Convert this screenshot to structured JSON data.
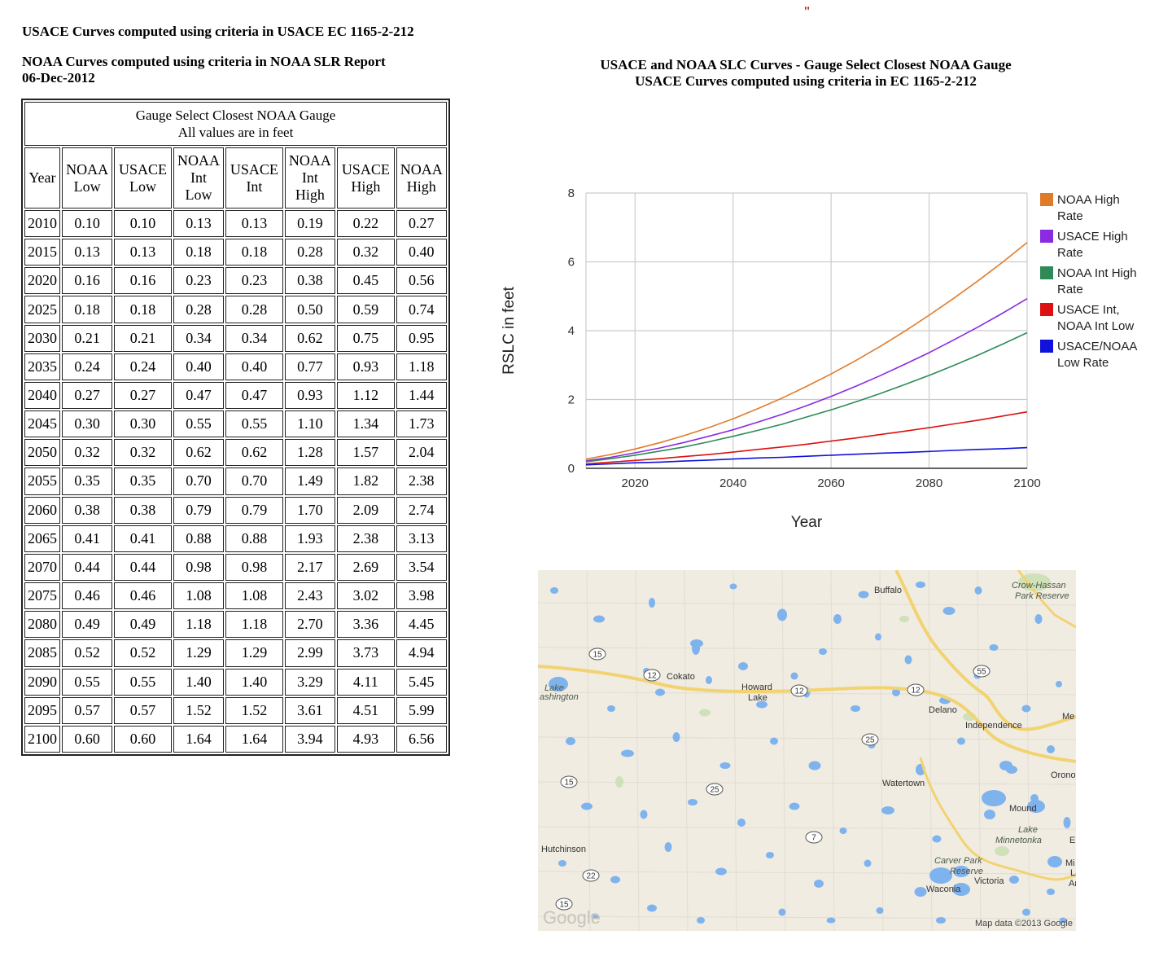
{
  "header": {
    "line1": "USACE Curves computed using criteria in USACE EC 1165-2-212",
    "line2a": "NOAA Curves computed using criteria in NOAA SLR Report",
    "line2b": "06-Dec-2012",
    "mark": "\""
  },
  "table": {
    "caption1": "Gauge Select Closest NOAA Gauge",
    "caption2": "All values are in feet",
    "columns": [
      "Year",
      "NOAA Low",
      "USACE Low",
      "NOAA Int Low",
      "USACE Int",
      "NOAA Int High",
      "USACE High",
      "NOAA High"
    ],
    "rows": [
      [
        "2010",
        "0.10",
        "0.10",
        "0.13",
        "0.13",
        "0.19",
        "0.22",
        "0.27"
      ],
      [
        "2015",
        "0.13",
        "0.13",
        "0.18",
        "0.18",
        "0.28",
        "0.32",
        "0.40"
      ],
      [
        "2020",
        "0.16",
        "0.16",
        "0.23",
        "0.23",
        "0.38",
        "0.45",
        "0.56"
      ],
      [
        "2025",
        "0.18",
        "0.18",
        "0.28",
        "0.28",
        "0.50",
        "0.59",
        "0.74"
      ],
      [
        "2030",
        "0.21",
        "0.21",
        "0.34",
        "0.34",
        "0.62",
        "0.75",
        "0.95"
      ],
      [
        "2035",
        "0.24",
        "0.24",
        "0.40",
        "0.40",
        "0.77",
        "0.93",
        "1.18"
      ],
      [
        "2040",
        "0.27",
        "0.27",
        "0.47",
        "0.47",
        "0.93",
        "1.12",
        "1.44"
      ],
      [
        "2045",
        "0.30",
        "0.30",
        "0.55",
        "0.55",
        "1.10",
        "1.34",
        "1.73"
      ],
      [
        "2050",
        "0.32",
        "0.32",
        "0.62",
        "0.62",
        "1.28",
        "1.57",
        "2.04"
      ],
      [
        "2055",
        "0.35",
        "0.35",
        "0.70",
        "0.70",
        "1.49",
        "1.82",
        "2.38"
      ],
      [
        "2060",
        "0.38",
        "0.38",
        "0.79",
        "0.79",
        "1.70",
        "2.09",
        "2.74"
      ],
      [
        "2065",
        "0.41",
        "0.41",
        "0.88",
        "0.88",
        "1.93",
        "2.38",
        "3.13"
      ],
      [
        "2070",
        "0.44",
        "0.44",
        "0.98",
        "0.98",
        "2.17",
        "2.69",
        "3.54"
      ],
      [
        "2075",
        "0.46",
        "0.46",
        "1.08",
        "1.08",
        "2.43",
        "3.02",
        "3.98"
      ],
      [
        "2080",
        "0.49",
        "0.49",
        "1.18",
        "1.18",
        "2.70",
        "3.36",
        "4.45"
      ],
      [
        "2085",
        "0.52",
        "0.52",
        "1.29",
        "1.29",
        "2.99",
        "3.73",
        "4.94"
      ],
      [
        "2090",
        "0.55",
        "0.55",
        "1.40",
        "1.40",
        "3.29",
        "4.11",
        "5.45"
      ],
      [
        "2095",
        "0.57",
        "0.57",
        "1.52",
        "1.52",
        "3.61",
        "4.51",
        "5.99"
      ],
      [
        "2100",
        "0.60",
        "0.60",
        "1.64",
        "1.64",
        "3.94",
        "4.93",
        "6.56"
      ]
    ]
  },
  "chart_data": {
    "type": "line",
    "title": "USACE and NOAA SLC Curves - Gauge Select Closest NOAA Gauge",
    "subtitle": "USACE Curves computed using criteria in EC 1165-2-212",
    "xlabel": "Year",
    "ylabel": "RSLC in feet",
    "xlim": [
      2010,
      2100
    ],
    "ylim": [
      0,
      8
    ],
    "xticks": [
      2020,
      2040,
      2060,
      2080,
      2100
    ],
    "yticks": [
      0,
      2,
      4,
      6,
      8
    ],
    "grid": true,
    "legend_position": "right",
    "x": [
      2010,
      2015,
      2020,
      2025,
      2030,
      2035,
      2040,
      2045,
      2050,
      2055,
      2060,
      2065,
      2070,
      2075,
      2080,
      2085,
      2090,
      2095,
      2100
    ],
    "series": [
      {
        "name": "NOAA High Rate",
        "color": "#e07b2a",
        "values": [
          0.27,
          0.4,
          0.56,
          0.74,
          0.95,
          1.18,
          1.44,
          1.73,
          2.04,
          2.38,
          2.74,
          3.13,
          3.54,
          3.98,
          4.45,
          4.94,
          5.45,
          5.99,
          6.56
        ]
      },
      {
        "name": "USACE High Rate",
        "color": "#8a2be2",
        "values": [
          0.22,
          0.32,
          0.45,
          0.59,
          0.75,
          0.93,
          1.12,
          1.34,
          1.57,
          1.82,
          2.09,
          2.38,
          2.69,
          3.02,
          3.36,
          3.73,
          4.11,
          4.51,
          4.93
        ]
      },
      {
        "name": "NOAA Int High Rate",
        "color": "#2e8b57",
        "values": [
          0.19,
          0.28,
          0.38,
          0.5,
          0.62,
          0.77,
          0.93,
          1.1,
          1.28,
          1.49,
          1.7,
          1.93,
          2.17,
          2.43,
          2.7,
          2.99,
          3.29,
          3.61,
          3.94
        ]
      },
      {
        "name": "USACE Int, NOAA Int Low",
        "color": "#dd1111",
        "values": [
          0.13,
          0.18,
          0.23,
          0.28,
          0.34,
          0.4,
          0.47,
          0.55,
          0.62,
          0.7,
          0.79,
          0.88,
          0.98,
          1.08,
          1.18,
          1.29,
          1.4,
          1.52,
          1.64
        ]
      },
      {
        "name": "USACE/NOAA Low Rate",
        "color": "#1111dd",
        "values": [
          0.1,
          0.13,
          0.16,
          0.18,
          0.21,
          0.24,
          0.27,
          0.3,
          0.32,
          0.35,
          0.38,
          0.41,
          0.44,
          0.46,
          0.49,
          0.52,
          0.55,
          0.57,
          0.6
        ]
      }
    ],
    "legend_lines": [
      [
        "NOAA High",
        "Rate"
      ],
      [
        "USACE High",
        "Rate"
      ],
      [
        "NOAA Int High",
        "Rate"
      ],
      [
        "USACE Int,",
        "NOAA Int Low"
      ],
      [
        "USACE/NOAA",
        "Low Rate"
      ]
    ]
  },
  "map": {
    "labels": [
      "Buffalo",
      "Crow-Hassan",
      "Park Reserve",
      "Cokato",
      "Howard",
      "Lake",
      "Lake",
      "ashington",
      "Delano",
      "Independence",
      "Me",
      "Watertown",
      "Orono",
      "Mound",
      "Lake",
      "Minnetonka",
      "E",
      "Hutchinson",
      "Carver Park",
      "Reserve",
      "Victoria",
      "Waconia",
      "Mi",
      "La",
      "Ar"
    ],
    "shields": [
      "15",
      "12",
      "12",
      "12",
      "55",
      "25",
      "15",
      "25",
      "7",
      "22",
      "15"
    ],
    "logo": "Google",
    "attribution": "Map data ©2013 Google"
  }
}
